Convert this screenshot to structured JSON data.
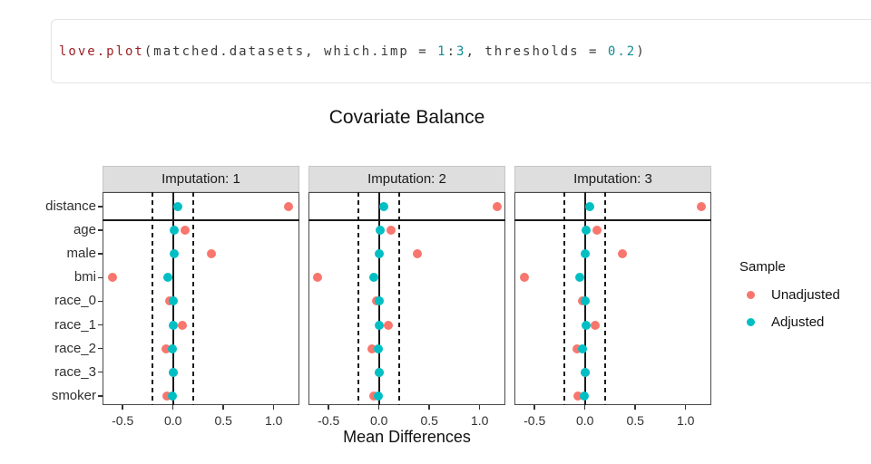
{
  "code_cell": {
    "tokens": [
      {
        "text": "love.plot",
        "type": "function"
      },
      {
        "text": "(matched.datasets, which.imp = ",
        "type": "plain"
      },
      {
        "text": "1",
        "type": "number"
      },
      {
        "text": ":",
        "type": "plain"
      },
      {
        "text": "3",
        "type": "number"
      },
      {
        "text": ", thresholds = ",
        "type": "plain"
      },
      {
        "text": "0.2",
        "type": "number"
      },
      {
        "text": ")",
        "type": "plain"
      }
    ],
    "token_colors": {
      "function": "#9c2125",
      "number": "#0f8b94",
      "plain": "#3a3a3a"
    }
  },
  "chart_data": {
    "type": "scatter",
    "title": "Covariate Balance",
    "xlabel": "Mean Differences",
    "facets": [
      "Imputation: 1",
      "Imputation: 2",
      "Imputation: 3"
    ],
    "categories": [
      "distance",
      "age",
      "male",
      "bmi",
      "race_0",
      "race_1",
      "race_2",
      "race_3",
      "smoker"
    ],
    "x_tick_labels": [
      "-0.5",
      "0.0",
      "0.5",
      "1.0"
    ],
    "x_tick_values": [
      -0.5,
      0.0,
      0.5,
      1.0
    ],
    "xlim": [
      -0.7,
      1.255
    ],
    "zero_line": 0,
    "threshold": 0.2,
    "threshold_lines": [
      -0.2,
      0.2
    ],
    "separator_after_category": "distance",
    "grid": false,
    "legend_position": "right",
    "series": [
      {
        "name": "Unadjusted",
        "color": "#f8766d",
        "values_by_facet": [
          [
            1.15,
            0.12,
            0.38,
            -0.6,
            -0.03,
            0.09,
            -0.07,
            0.0,
            -0.06
          ],
          [
            1.17,
            0.12,
            0.38,
            -0.61,
            -0.02,
            0.09,
            -0.07,
            0.0,
            -0.05
          ],
          [
            1.16,
            0.12,
            0.37,
            -0.6,
            -0.02,
            0.1,
            -0.08,
            0.0,
            -0.07
          ]
        ]
      },
      {
        "name": "Adjusted",
        "color": "#00bfc4",
        "values_by_facet": [
          [
            0.05,
            0.01,
            0.01,
            -0.05,
            0.0,
            0.0,
            -0.01,
            0.0,
            -0.01
          ],
          [
            0.05,
            0.01,
            0.0,
            -0.05,
            0.0,
            0.0,
            -0.01,
            0.0,
            -0.01
          ],
          [
            0.05,
            0.01,
            0.0,
            -0.05,
            0.0,
            0.01,
            -0.02,
            0.0,
            -0.01
          ]
        ]
      }
    ],
    "legend": {
      "title": "Sample",
      "items": [
        {
          "label": "Unadjusted",
          "color": "#f8766d"
        },
        {
          "label": "Adjusted",
          "color": "#00bfc4"
        }
      ]
    }
  }
}
